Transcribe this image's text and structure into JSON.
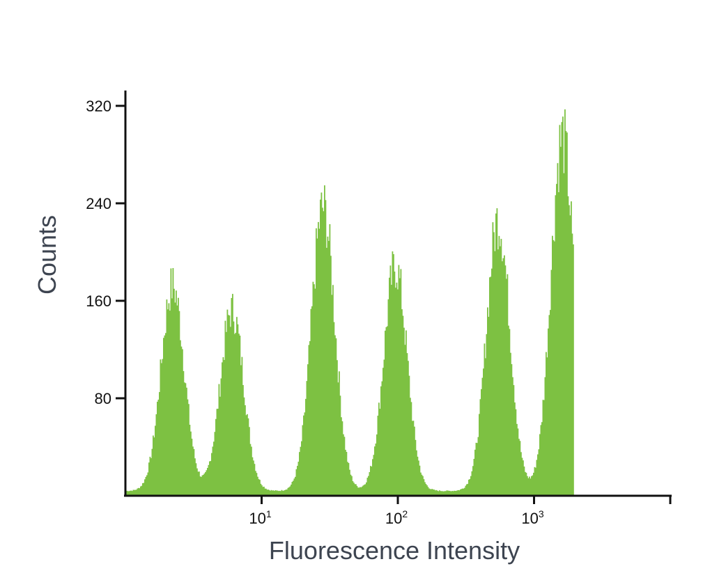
{
  "chart_data": {
    "type": "area",
    "title": "",
    "xlabel": "Fluorescence Intensity",
    "ylabel": "Counts",
    "x_scale": "log",
    "xlim": [
      1.0,
      10000
    ],
    "ylim": [
      0,
      330
    ],
    "y_ticks": [
      80,
      160,
      240,
      320
    ],
    "x_ticks": [
      {
        "value": 10,
        "base": "10",
        "exp": "1"
      },
      {
        "value": 100,
        "base": "10",
        "exp": "2"
      },
      {
        "value": 1000,
        "base": "10",
        "exp": "3"
      }
    ],
    "grid": false,
    "legend": "none",
    "fill_color": "#7dc142",
    "axis_color": "#111111",
    "peaks": [
      {
        "x": 2.2,
        "y": 170
      },
      {
        "x": 6.0,
        "y": 150
      },
      {
        "x": 28,
        "y": 235
      },
      {
        "x": 95,
        "y": 186
      },
      {
        "x": 540,
        "y": 225
      },
      {
        "x": 1600,
        "y": 293
      }
    ],
    "x_data_max": 1930
  }
}
